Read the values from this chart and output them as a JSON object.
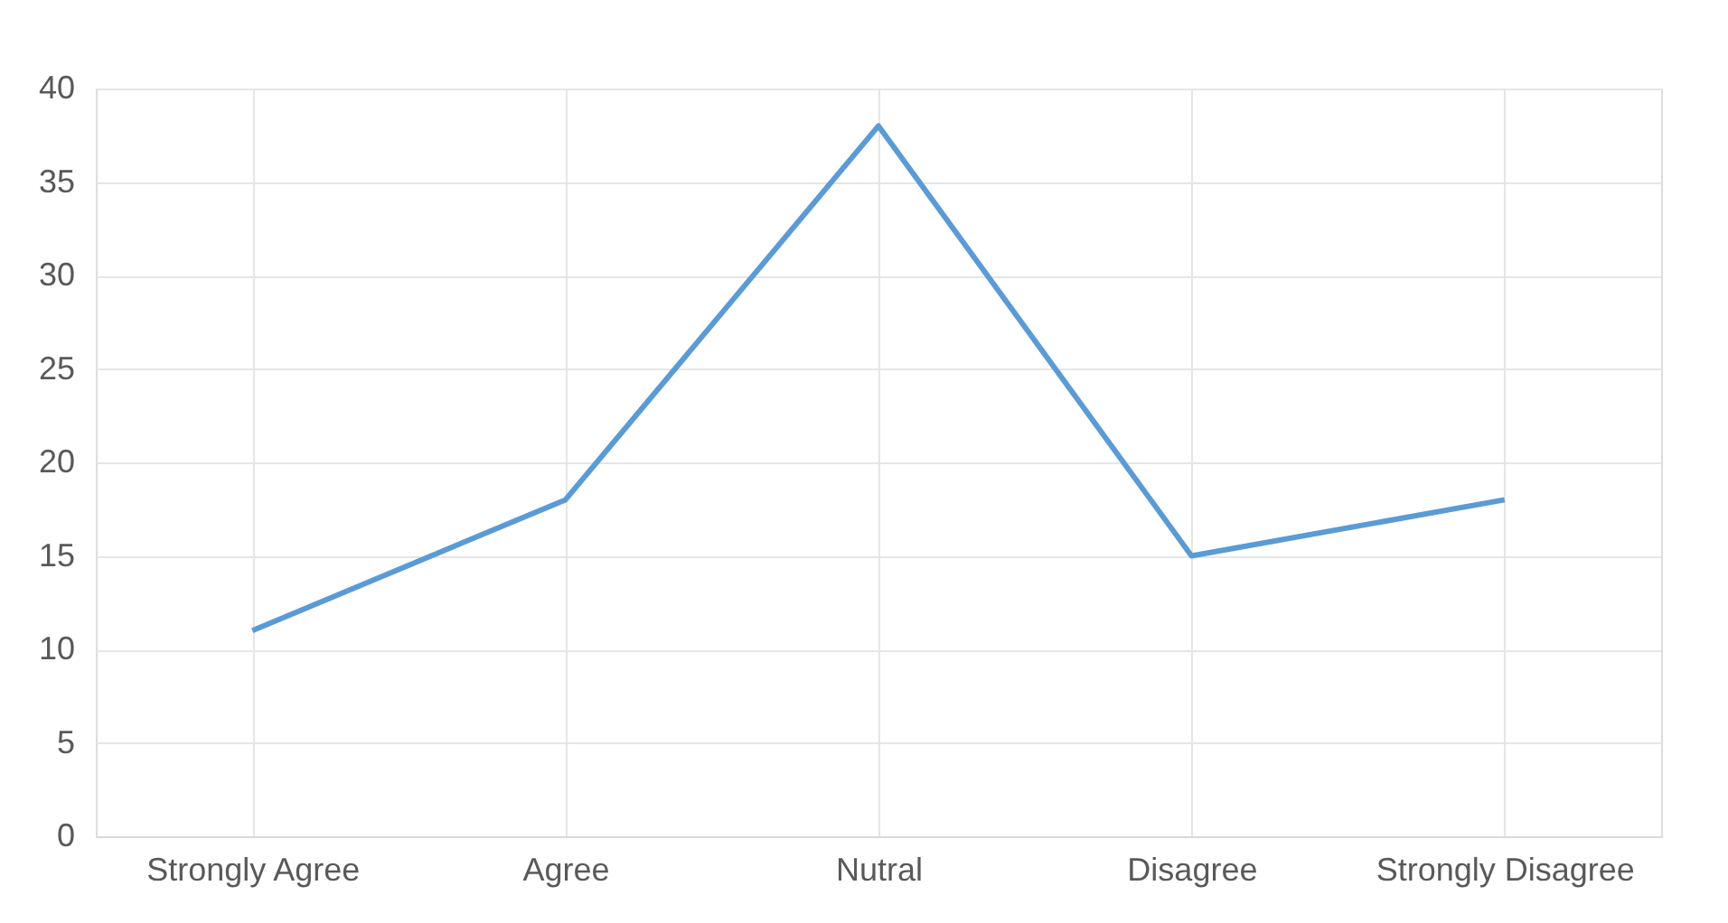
{
  "chart_data": {
    "type": "line",
    "categories": [
      "Strongly Agree",
      "Agree",
      "Nutral",
      "Disagree",
      "Strongly Disagree"
    ],
    "series": [
      {
        "color": "#5b9bd5",
        "values": [
          11,
          18,
          38,
          15,
          18
        ]
      }
    ],
    "ylim": [
      0,
      40
    ],
    "yticks": [
      0,
      5,
      10,
      15,
      20,
      25,
      30,
      35,
      40
    ],
    "grid": true,
    "marker": "none",
    "line_style": "solid"
  }
}
